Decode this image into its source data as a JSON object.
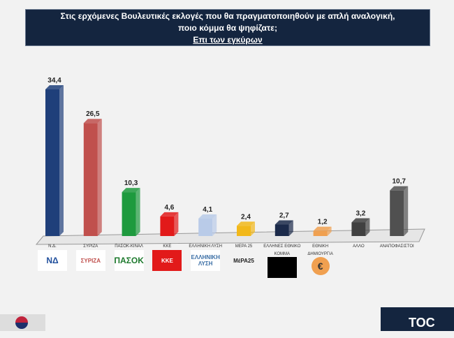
{
  "chart_data": {
    "type": "bar",
    "title": [
      "Στις ερχόμενες Βουλευτικές εκλογές που θα πραγματοποιηθούν με απλή αναλογική,",
      "ποιο κόμμα θα ψηφίζατε;",
      "Επι των εγκύρων"
    ],
    "categories": [
      "Ν.Δ.",
      "ΣΥΡΙΖΑ",
      "ΠΑΣΟΚ-ΚΙΝΑΛ",
      "ΚΚΕ",
      "ΕΛΛΗΝΙΚΗ ΛΥΣΗ",
      "ΜΕΡΑ 25",
      "ΕΛΛΗΝΕΣ ΕΘΝΙΚΟ ΚΟΜΜΑ",
      "ΕΘΝΙΚΗ ΔΗΜΙΟΥΡΓΙΑ",
      "ΑΛΛΟ",
      "ΑΝΑΠΟΦΑΣΙΣΤΟΙ"
    ],
    "values": [
      34.4,
      26.5,
      10.3,
      4.6,
      4.1,
      2.4,
      2.7,
      1.2,
      3.2,
      10.7
    ],
    "value_labels": [
      "34,4",
      "26,5",
      "10,3",
      "4,6",
      "4,1",
      "2,4",
      "2,7",
      "1,2",
      "3,2",
      "10,7"
    ],
    "colors": [
      "#1f3f7a",
      "#c0504d",
      "#1e9a3e",
      "#e21a1a",
      "#b9cbe8",
      "#f2b81a",
      "#1b2a4a",
      "#f0a050",
      "#404040",
      "#505050"
    ],
    "ylim": [
      0,
      36
    ],
    "grid": false,
    "legend": "none"
  },
  "logos": [
    "ΝΔ",
    "ΣΥΡΙΖΑ",
    "ΠΑΣΟΚ",
    "ΚΚΕ",
    "ΕΛΛΗΝΙΚΗ ΛΥΣΗ",
    "ΜέΡΑ25",
    "",
    "€",
    "",
    ""
  ],
  "watermark": "TOC"
}
